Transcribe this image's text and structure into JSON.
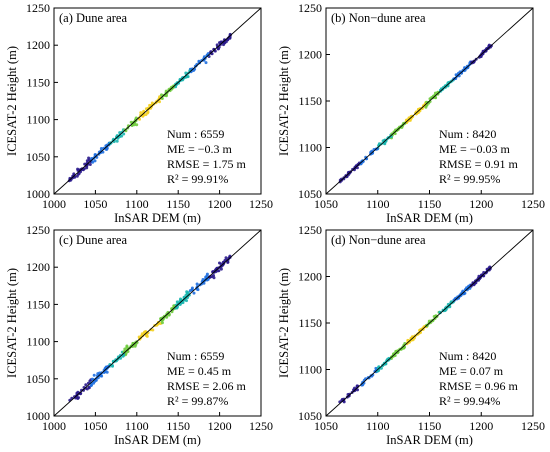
{
  "figure": {
    "shared_xlabel": "InSAR  DEM (m)",
    "shared_ylabel": "ICESAT-2 Height (m)"
  },
  "chart_data": [
    {
      "type": "scatter",
      "title": "(a) Dune area",
      "xlabel": "InSAR  DEM (m)",
      "ylabel": "ICESAT-2 Height (m)",
      "xlim": [
        1000,
        1250
      ],
      "ylim": [
        1000,
        1250
      ],
      "xticks": [
        "1000",
        "1050",
        "1100",
        "1150",
        "1200",
        "1250"
      ],
      "yticks": [
        "1000",
        "1050",
        "1100",
        "1150",
        "1200",
        "1250"
      ],
      "range": [
        1018,
        1213
      ],
      "stats": [
        "Num : 6559",
        "ME = −0.3 m",
        "RMSE = 1.75 m",
        "R² = 99.91%"
      ],
      "reference_line": "1:1",
      "grid": false
    },
    {
      "type": "scatter",
      "title": "(b) Non−dune area",
      "xlabel": "InSAR  DEM (m)",
      "ylabel": "ICESAT-2 Height (m)",
      "xlim": [
        1050,
        1250
      ],
      "ylim": [
        1050,
        1250
      ],
      "xticks": [
        "1050",
        "1100",
        "1150",
        "1200",
        "1250"
      ],
      "yticks": [
        "1050",
        "1100",
        "1150",
        "1200",
        "1250"
      ],
      "range": [
        1063,
        1210
      ],
      "stats": [
        "Num : 8420",
        "ME = −0.03 m",
        "RMSE = 0.91 m",
        "R² = 99.95%"
      ],
      "reference_line": "1:1",
      "grid": false
    },
    {
      "type": "scatter",
      "title": "(c) Dune area",
      "xlabel": "InSAR  DEM (m)",
      "ylabel": "ICESAT-2 Height (m)",
      "xlim": [
        1000,
        1250
      ],
      "ylim": [
        1000,
        1250
      ],
      "xticks": [
        "1000",
        "1050",
        "1100",
        "1150",
        "1200",
        "1250"
      ],
      "yticks": [
        "1000",
        "1050",
        "1100",
        "1150",
        "1200",
        "1250"
      ],
      "range": [
        1018,
        1213
      ],
      "stats": [
        "Num : 6559",
        "ME = 0.45 m",
        "RMSE = 2.06 m",
        "R² = 99.87%"
      ],
      "reference_line": "1:1",
      "grid": false
    },
    {
      "type": "scatter",
      "title": "(d) Non−dune area",
      "xlabel": "InSAR  DEM (m)",
      "ylabel": "ICESAT-2 Height (m)",
      "xlim": [
        1050,
        1250
      ],
      "ylim": [
        1050,
        1250
      ],
      "xticks": [
        "1050",
        "1100",
        "1150",
        "1200",
        "1250"
      ],
      "yticks": [
        "1050",
        "1100",
        "1150",
        "1200",
        "1250"
      ],
      "range": [
        1063,
        1210
      ],
      "stats": [
        "Num : 8420",
        "ME = 0.07 m",
        "RMSE = 0.96 m",
        "R² = 99.94%"
      ],
      "reference_line": "1:1",
      "grid": false
    }
  ],
  "colors": {
    "density_low": "#2a1a8c",
    "density_mid_low": "#1e6fe0",
    "density_mid": "#1ab6b0",
    "density_high": "#6ecb3c",
    "density_max": "#f4d020",
    "reference_line": "#000000"
  }
}
